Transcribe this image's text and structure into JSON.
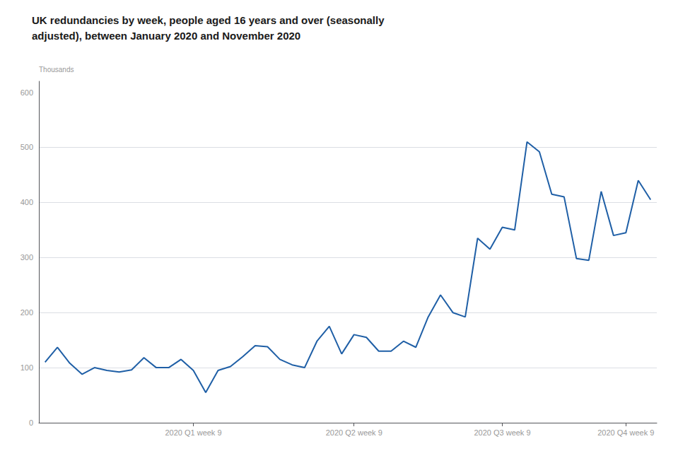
{
  "chart_data": {
    "type": "line",
    "title": "UK redundancies by week, people aged 16 years and over (seasonally\nadjusted), between January 2020 and November 2020",
    "ylabel": "Thousands",
    "categories": [
      null,
      null,
      null,
      null,
      null,
      null,
      null,
      null,
      null,
      null,
      null,
      null,
      "2020 Q1 week 9",
      null,
      null,
      null,
      null,
      null,
      null,
      null,
      null,
      null,
      null,
      null,
      null,
      "2020 Q2 week 9",
      null,
      null,
      null,
      null,
      null,
      null,
      null,
      null,
      null,
      null,
      null,
      "2020 Q3 week 9",
      null,
      null,
      null,
      null,
      null,
      null,
      null,
      null,
      null,
      "2020 Q4 week 9",
      null,
      null
    ],
    "values": [
      110,
      137,
      108,
      88,
      100,
      95,
      92,
      96,
      118,
      100,
      100,
      115,
      95,
      55,
      95,
      102,
      120,
      140,
      138,
      115,
      105,
      100,
      148,
      175,
      125,
      160,
      155,
      130,
      130,
      148,
      137,
      192,
      232,
      200,
      192,
      335,
      315,
      355,
      350,
      510,
      492,
      415,
      410,
      298,
      295,
      420,
      340,
      345,
      440,
      405
    ],
    "color": "#1f5fa6",
    "ylim": [
      0,
      620
    ],
    "yticks": [
      0,
      100,
      200,
      300,
      400,
      500,
      600
    ],
    "grid": true
  }
}
